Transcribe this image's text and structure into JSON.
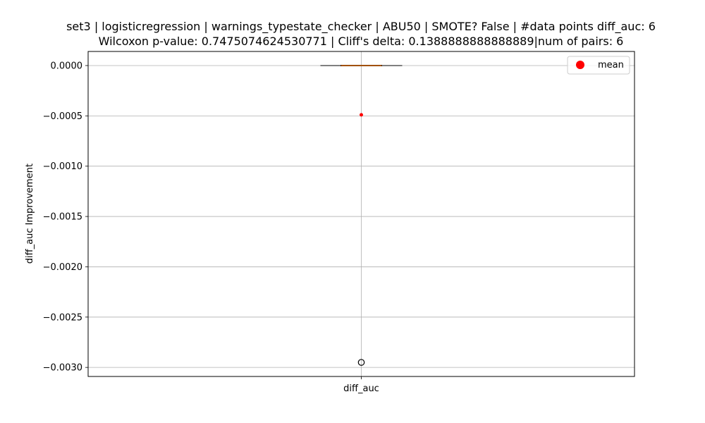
{
  "chart_data": {
    "type": "box",
    "title_line1": "set3 | logisticregression | warnings_typestate_checker | ABU50 | SMOTE? False | #data points diff_auc: 6",
    "title_line2": "Wilcoxon p-value: 0.7475074624530771 | Cliff's delta: 0.1388888888888889|num of pairs: 6",
    "xlabel": "",
    "ylabel": "diff_auc Improvement",
    "categories": [
      "diff_auc"
    ],
    "yticks": [
      0.0,
      -0.0005,
      -0.001,
      -0.0015,
      -0.002,
      -0.0025,
      -0.003
    ],
    "ytick_labels": [
      "0.0000",
      "−0.0005",
      "−0.0010",
      "−0.0015",
      "−0.0020",
      "−0.0025",
      "−0.0030"
    ],
    "ylim": [
      -0.00309,
      0.00014
    ],
    "box": {
      "q1": 0.0,
      "median": 0.0,
      "q3": 0.0,
      "whisker_low": 0.0,
      "whisker_high": 0.0,
      "mean": -0.00049,
      "outliers": [
        -0.00295
      ]
    },
    "grid": true,
    "legend": {
      "position": "top-right",
      "entries": [
        {
          "label": "mean",
          "color": "#ff0000"
        }
      ]
    },
    "colors": {
      "median": "#ff7f0e",
      "mean": "#ff0000",
      "box": "#000000",
      "grid": "#b0b0b0"
    }
  }
}
